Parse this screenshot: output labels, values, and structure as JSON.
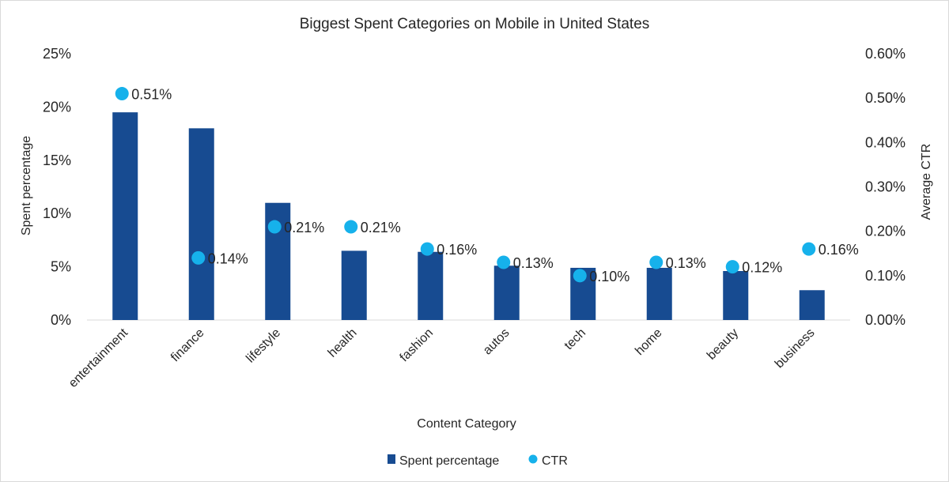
{
  "chart_data": {
    "type": "bar",
    "title": "Biggest Spent Categories on Mobile in United States",
    "xlabel": "Content Category",
    "ylabel": "Spent percentage",
    "y2label": "Average CTR",
    "categories": [
      "entertainment",
      "finance",
      "lifestyle",
      "health",
      "fashion",
      "autos",
      "tech",
      "home",
      "beauty",
      "business"
    ],
    "ylim": [
      0,
      25
    ],
    "y2lim": [
      0,
      0.6
    ],
    "yticks": [
      "0%",
      "5%",
      "10%",
      "15%",
      "20%",
      "25%"
    ],
    "y2ticks": [
      "0.00%",
      "0.10%",
      "0.20%",
      "0.30%",
      "0.40%",
      "0.50%",
      "0.60%"
    ],
    "series": [
      {
        "name": "Spent percentage",
        "type": "bar",
        "axis": "left",
        "color": "#174b91",
        "values": [
          19.5,
          18.0,
          11.0,
          6.5,
          6.4,
          5.1,
          4.9,
          4.9,
          4.6,
          2.8
        ]
      },
      {
        "name": "CTR",
        "type": "scatter",
        "axis": "right",
        "color": "#16b1eb",
        "values": [
          0.51,
          0.14,
          0.21,
          0.21,
          0.16,
          0.13,
          0.1,
          0.13,
          0.12,
          0.16
        ],
        "labels": [
          "0.51%",
          "0.14%",
          "0.21%",
          "0.21%",
          "0.16%",
          "0.13%",
          "0.10%",
          "0.13%",
          "0.12%",
          "0.16%"
        ]
      }
    ],
    "legend": "bottom",
    "grid": false
  }
}
